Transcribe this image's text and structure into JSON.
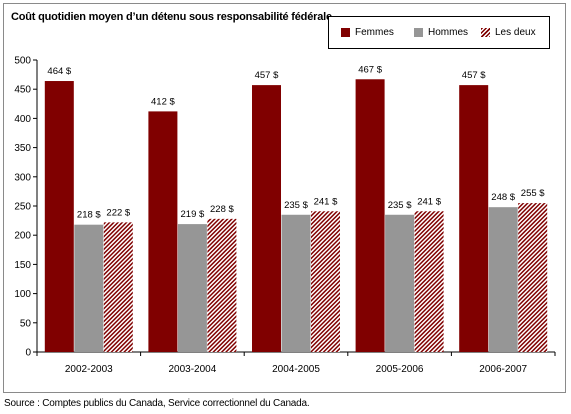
{
  "chart_data": {
    "type": "bar",
    "title": "Coût quotidien moyen d’un détenu sous responsabilité fédérale",
    "categories": [
      "2002-2003",
      "2003-2004",
      "2004-2005",
      "2005-2006",
      "2006-2007"
    ],
    "series": [
      {
        "name": "Femmes",
        "values": [
          464,
          412,
          457,
          467,
          457
        ],
        "labels": [
          "464 $",
          "412 $",
          "457 $",
          "467 $",
          "457 $"
        ],
        "color": "#800000",
        "pattern": "solid"
      },
      {
        "name": "Hommes",
        "values": [
          218,
          219,
          235,
          235,
          248
        ],
        "labels": [
          "218 $",
          "219 $",
          "235 $",
          "235 $",
          "248 $"
        ],
        "color": "#969696",
        "pattern": "solid"
      },
      {
        "name": "Les deux",
        "values": [
          222,
          228,
          241,
          241,
          255
        ],
        "labels": [
          "222 $",
          "228 $",
          "241 $",
          "241 $",
          "255 $"
        ],
        "color": "#800000",
        "pattern": "diagonal-stripes"
      }
    ],
    "yticks": [
      0,
      50,
      100,
      150,
      200,
      250,
      300,
      350,
      400,
      450,
      500
    ],
    "ylim": [
      0,
      500
    ],
    "xlabel": "",
    "ylabel": "",
    "grid": false,
    "legend_position": "top-right"
  },
  "source": "Source : Comptes publics du Canada, Service correctionnel du Canada."
}
